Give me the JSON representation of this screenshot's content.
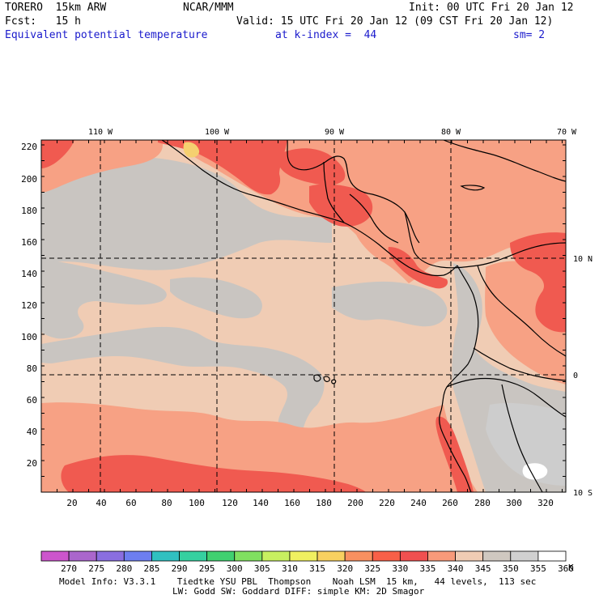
{
  "header": {
    "model": "TORERO  15km ARW",
    "org": "NCAR/MMM",
    "init": "Init: 00 UTC Fri 20 Jan 12",
    "fcst": "Fcst:   15 h",
    "valid": "Valid: 15 UTC Fri 20 Jan 12 (09 CST Fri 20 Jan 12)",
    "field": "Equivalent potential temperature",
    "level": "at k-index =  44",
    "smoothing": "sm= 2"
  },
  "map": {
    "lon_labels": [
      "110 W",
      "100 W",
      "90 W",
      "80 W",
      "70 W"
    ],
    "lat_labels": [
      "10 N",
      "0",
      "10 S"
    ],
    "y_ticks": [
      "220",
      "200",
      "180",
      "160",
      "140",
      "120",
      "100",
      "80",
      "60",
      "40",
      "20"
    ],
    "x_ticks": [
      "20",
      "40",
      "60",
      "80",
      "100",
      "120",
      "140",
      "160",
      "180",
      "200",
      "220",
      "240",
      "260",
      "280",
      "300",
      "320"
    ]
  },
  "colorbar": {
    "labels": [
      "270",
      "275",
      "280",
      "285",
      "290",
      "295",
      "300",
      "305",
      "310",
      "315",
      "320",
      "325",
      "330",
      "335",
      "340",
      "345",
      "350",
      "355",
      "360"
    ],
    "unit": "K",
    "colors": [
      "#cc55cc",
      "#aa66cc",
      "#8a6ee0",
      "#6d7ef0",
      "#30c0c0",
      "#35d0a0",
      "#40d070",
      "#80e060",
      "#c8f060",
      "#f0f060",
      "#f8d060",
      "#f89060",
      "#f86048",
      "#f05050",
      "#f89a7a",
      "#f0ccb4",
      "#cfc8c0",
      "#d0d0d0",
      "#ffffff"
    ]
  },
  "footer": {
    "line1": "Model Info: V3.3.1    Tiedtke YSU PBL  Thompson    Noah LSM  15 km,   44 levels,  113 sec",
    "line2": "LW: Godd SW: Goddard DIFF: simple KM: 2D Smagor"
  },
  "colors": {
    "warm": "#f0ccb4",
    "grey": "#c9c5c1",
    "lightgrey": "#cdcdcd",
    "salmon": "#f7a184",
    "red": "#f05a50",
    "yellow": "#f5d070"
  }
}
